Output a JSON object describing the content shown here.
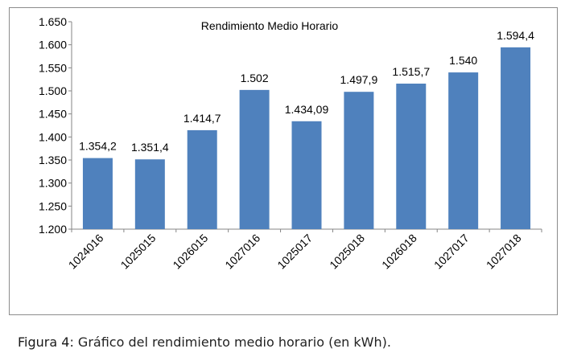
{
  "chart_data": {
    "type": "bar",
    "title": "Rendimiento Medio Horario",
    "categories": [
      "1024016",
      "1025015",
      "1026015",
      "1027016",
      "1025017",
      "1025018",
      "1026018",
      "1027017",
      "1027018"
    ],
    "values": [
      1354.2,
      1351.4,
      1414.7,
      1502,
      1434.09,
      1497.9,
      1515.7,
      1540,
      1594.4
    ],
    "data_labels": [
      "1.354,2",
      "1.351,4",
      "1.414,7",
      "1.502",
      "1.434,09",
      "1.497,9",
      "1.515,7",
      "1.540",
      "1.594,4"
    ],
    "ylim": [
      1200,
      1650
    ],
    "y_ticks": [
      1200,
      1250,
      1300,
      1350,
      1400,
      1450,
      1500,
      1550,
      1600,
      1650
    ],
    "y_tick_labels": [
      "1.200",
      "1.250",
      "1.300",
      "1.350",
      "1.400",
      "1.450",
      "1.500",
      "1.550",
      "1.600",
      "1.650"
    ],
    "xlabel": "",
    "ylabel": "",
    "grid": false,
    "legend": "none",
    "bar_color": "#4f81bd"
  },
  "caption": {
    "label": "Figura 4",
    "text": ": Gráfico del rendimiento medio horario (en kWh)."
  }
}
